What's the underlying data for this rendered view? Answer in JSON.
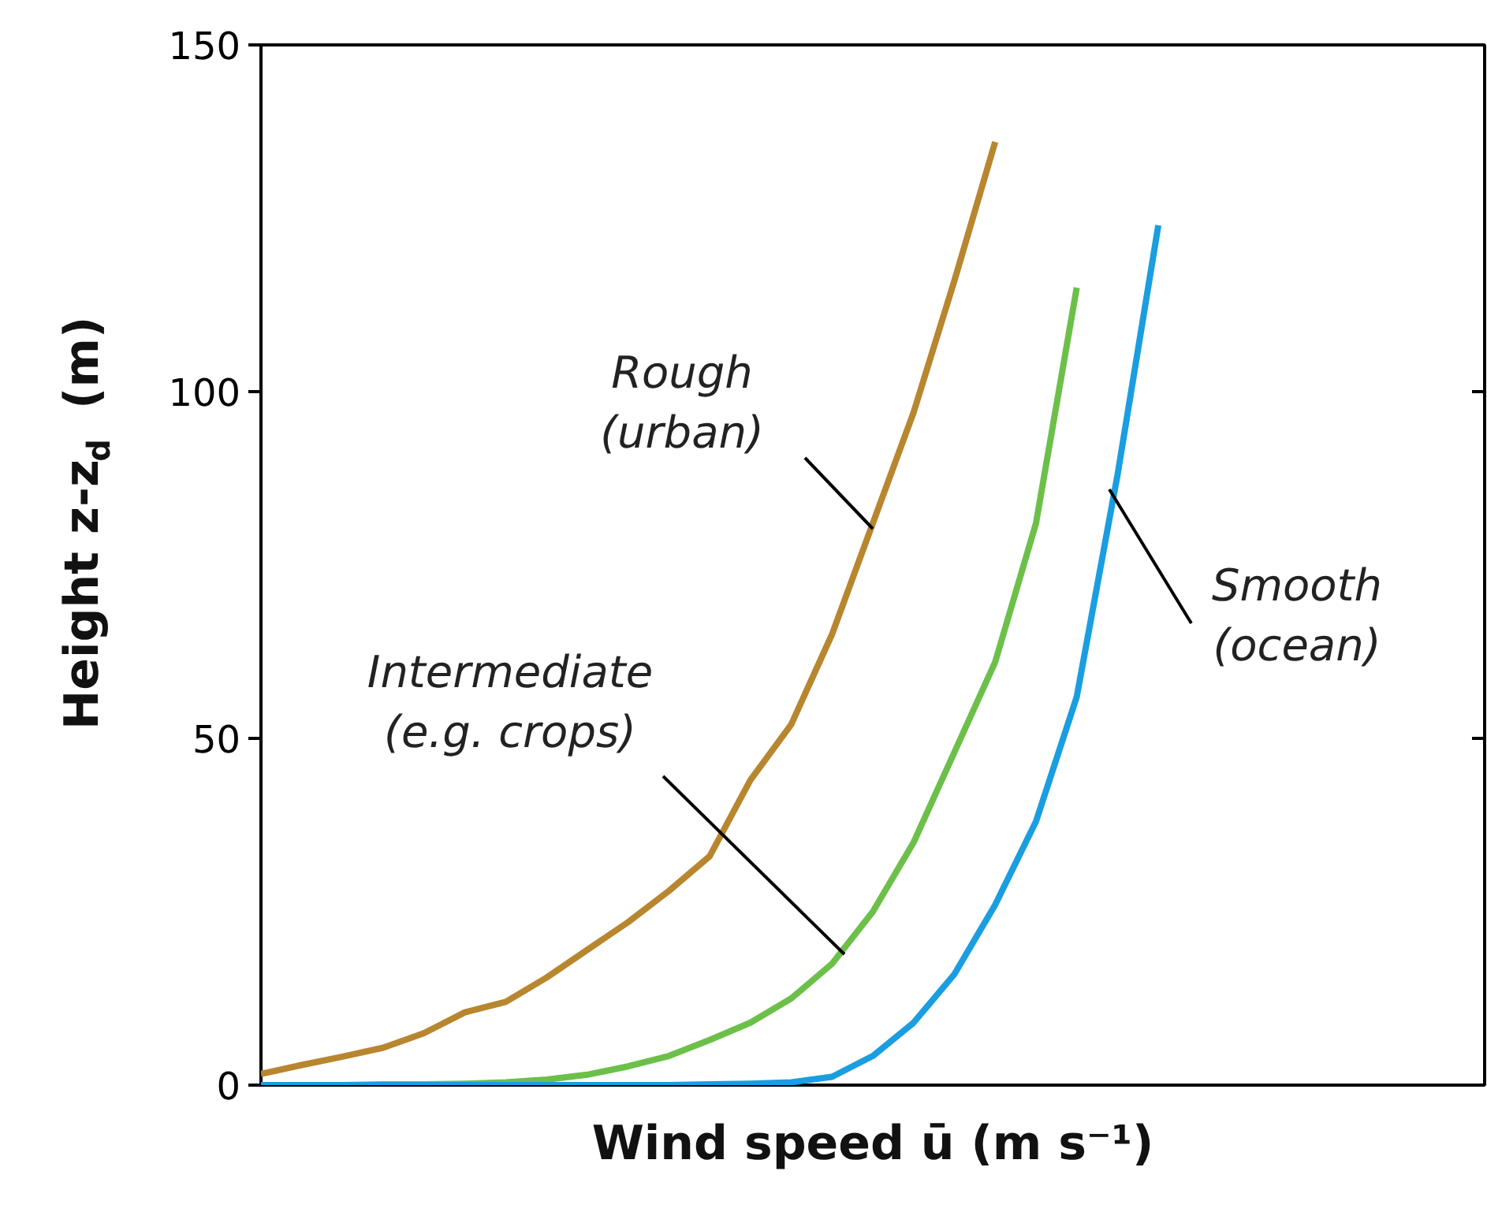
{
  "chart_data": {
    "type": "line",
    "xlabel": "Wind speed ū (m s⁻¹)",
    "ylabel": "Height z-z$_{d}$ (m)",
    "categories": [
      null,
      null,
      null,
      null,
      null,
      null,
      null,
      null,
      null,
      null,
      null,
      null,
      null,
      null,
      null,
      null,
      null,
      null,
      null,
      null,
      null,
      null,
      null,
      null,
      null,
      null,
      null,
      null,
      null,
      null,
      null
    ],
    "ylim": [
      0,
      150
    ],
    "yticks": [
      0,
      50,
      100,
      150
    ],
    "grid": false,
    "marker": "none",
    "line_style": "solid",
    "series": [
      {
        "color": "#b8862e",
        "values": [
          1.6,
          2.9,
          4.1,
          5.4,
          7.5,
          10.5,
          12,
          15.5,
          19.5,
          23.5,
          28,
          33,
          44,
          52,
          65,
          81,
          97,
          116,
          136,
          null,
          null,
          null,
          null,
          null,
          null,
          null,
          null,
          null,
          null,
          null,
          null
        ]
      },
      {
        "color": "#6cc04a",
        "values": [
          0,
          0,
          0,
          0.1,
          0.1,
          0.2,
          0.4,
          0.8,
          1.5,
          2.7,
          4.2,
          6.5,
          9,
          12.5,
          17.5,
          25,
          35,
          48,
          61,
          81,
          115,
          null,
          null,
          null,
          null,
          null,
          null,
          null,
          null,
          null,
          null
        ]
      },
      {
        "color": "#1a9ee0",
        "values": [
          0,
          0,
          0,
          0,
          0,
          0,
          0,
          0,
          0,
          0,
          0,
          0.1,
          0.2,
          0.4,
          1.2,
          4.2,
          9,
          16,
          26,
          38,
          56,
          88,
          124,
          null,
          null,
          null,
          null,
          null,
          null,
          null,
          null
        ]
      }
    ],
    "annotations": [
      "Rough\n(urban)",
      "Intermediate\n(e.g. crops)",
      "Smooth\n(ocean)"
    ]
  }
}
